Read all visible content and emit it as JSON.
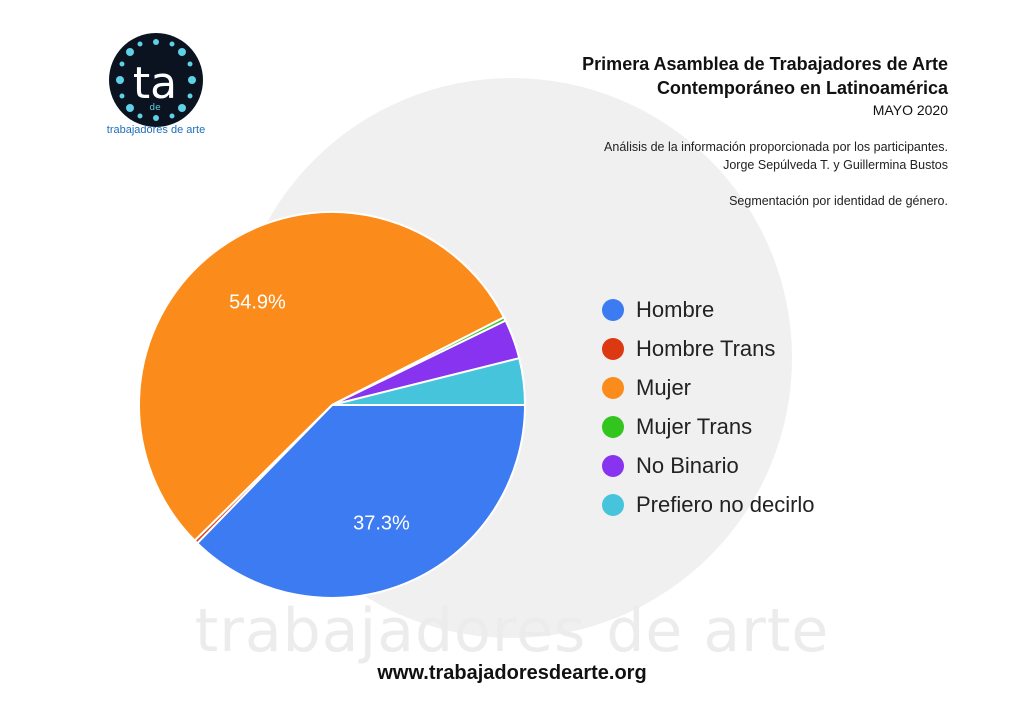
{
  "logo": {
    "letters": "ta",
    "small_text": "de",
    "caption": "trabajadores de arte"
  },
  "header": {
    "title_line1": "Primera Asamblea de Trabajadores de Arte",
    "title_line2": "Contemporáneo en Latinoamérica",
    "date": "MAYO 2020",
    "analysis_note": "Análisis de la información proporcionada por los participantes.",
    "authors": "Jorge Sepúlveda T. y Guillermina Bustos",
    "segmentation": "Segmentación por identidad de género."
  },
  "watermark": "trabajadores de arte",
  "footer": {
    "website": "www.trabajadoresdearte.org"
  },
  "chart_data": {
    "type": "pie",
    "categories": [
      "Hombre",
      "Hombre Trans",
      "Mujer",
      "Mujer Trans",
      "No Binario",
      "Prefiero no decirlo"
    ],
    "values": [
      37.3,
      0.3,
      54.9,
      0.3,
      3.3,
      3.9
    ],
    "value_labels": [
      "37.3%",
      "",
      "54.9%",
      "",
      "",
      ""
    ],
    "colors": [
      "#3d7bf2",
      "#dc3912",
      "#fb8c1b",
      "#32c51d",
      "#8733f0",
      "#45c4dc"
    ],
    "legend_position": "right"
  }
}
